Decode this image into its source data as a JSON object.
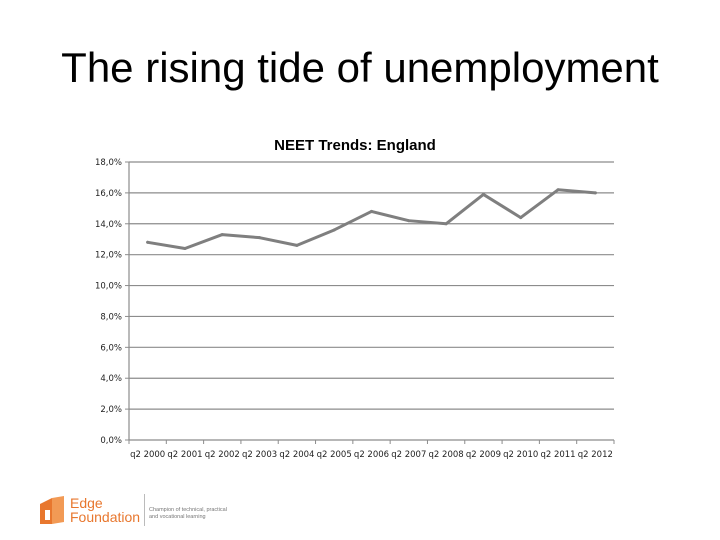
{
  "slide": {
    "title": "The rising tide of unemployment"
  },
  "chart_data": {
    "type": "line",
    "title": "NEET Trends: England",
    "xlabel": "",
    "ylabel": "",
    "categories": [
      "q2 2000",
      "q2 2001",
      "q2 2002",
      "q2 2003",
      "q2 2004",
      "q2 2005",
      "q2 2006",
      "q2 2007",
      "q2 2008",
      "q2 2009",
      "q2 2010",
      "q2 2011",
      "q2 2012"
    ],
    "y_ticks": [
      "0,0%",
      "2,0%",
      "4,0%",
      "6,0%",
      "8,0%",
      "10,0%",
      "12,0%",
      "14,0%",
      "16,0%",
      "18,0%"
    ],
    "ylim": [
      0,
      18
    ],
    "grid": true,
    "legend": "none",
    "series": [
      {
        "color": "#7f7f7f",
        "values": [
          12.8,
          12.4,
          13.3,
          13.1,
          12.6,
          13.6,
          14.8,
          14.2,
          14.0,
          15.9,
          14.4,
          16.2,
          16.0
        ]
      }
    ]
  },
  "logo": {
    "name_line1": "Edge",
    "name_line2": "Foundation",
    "tagline_line1": "Champion of technical, practical",
    "tagline_line2": "and vocational learning",
    "color": "#e8772e"
  }
}
